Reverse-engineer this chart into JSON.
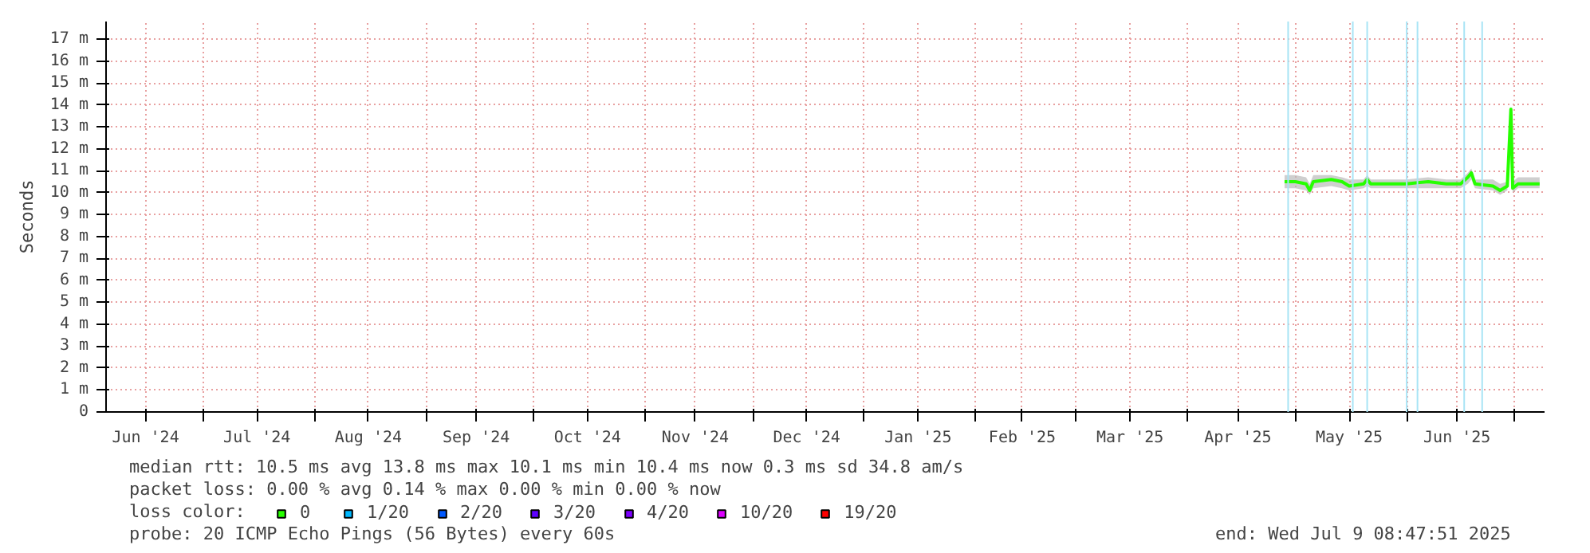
{
  "chart_data": {
    "type": "line",
    "ylabel": "Seconds",
    "legend_title": "loss color:",
    "legend": "bottom",
    "grid": true,
    "line_style": "solid",
    "marker": "none",
    "xlim": [
      "2024-06-04",
      "2025-07-09T08:47"
    ],
    "xticks": [
      {
        "value": "2024-06-15",
        "label": "Jun '24"
      },
      {
        "value": "2024-07-01",
        "label": null
      },
      {
        "value": "2024-07-16",
        "label": "Jul '24"
      },
      {
        "value": "2024-08-01",
        "label": null
      },
      {
        "value": "2024-08-16",
        "label": "Aug '24"
      },
      {
        "value": "2024-09-01",
        "label": null
      },
      {
        "value": "2024-09-15",
        "label": "Sep '24"
      },
      {
        "value": "2024-10-01",
        "label": null
      },
      {
        "value": "2024-10-16",
        "label": "Oct '24"
      },
      {
        "value": "2024-11-01",
        "label": null
      },
      {
        "value": "2024-11-15",
        "label": "Nov '24"
      },
      {
        "value": "2024-12-01",
        "label": null
      },
      {
        "value": "2024-12-16",
        "label": "Dec '24"
      },
      {
        "value": "2025-01-01",
        "label": null
      },
      {
        "value": "2025-01-16",
        "label": "Jan '25"
      },
      {
        "value": "2025-02-01",
        "label": null
      },
      {
        "value": "2025-02-14",
        "label": "Feb '25"
      },
      {
        "value": "2025-03-01",
        "label": null
      },
      {
        "value": "2025-03-16",
        "label": "Mar '25"
      },
      {
        "value": "2025-04-01",
        "label": null
      },
      {
        "value": "2025-04-15",
        "label": "Apr '25"
      },
      {
        "value": "2025-05-01",
        "label": null
      },
      {
        "value": "2025-05-16",
        "label": "May '25"
      },
      {
        "value": "2025-06-01",
        "label": null
      },
      {
        "value": "2025-06-15",
        "label": "Jun '25"
      },
      {
        "value": "2025-07-01",
        "label": null
      }
    ],
    "ylim": [
      0,
      17.8
    ],
    "yticks": [
      0,
      {
        "value": 1,
        "label": "1 m"
      },
      {
        "value": 2,
        "label": "2 m"
      },
      {
        "value": 3,
        "label": "3 m"
      },
      {
        "value": 4,
        "label": "4 m"
      },
      {
        "value": 5,
        "label": "5 m"
      },
      {
        "value": 6,
        "label": "6 m"
      },
      {
        "value": 7,
        "label": "7 m"
      },
      {
        "value": 8,
        "label": "8 m"
      },
      {
        "value": 9,
        "label": "9 m"
      },
      {
        "value": 10,
        "label": "10 m"
      },
      {
        "value": 11,
        "label": "11 m"
      },
      {
        "value": 12,
        "label": "12 m"
      },
      {
        "value": 13,
        "label": "13 m"
      },
      {
        "value": 14,
        "label": "14 m"
      },
      {
        "value": 15,
        "label": "15 m"
      },
      {
        "value": 16,
        "label": "16 m"
      },
      {
        "value": 17,
        "label": "17 m"
      }
    ],
    "x": [
      "2025-04-28",
      "2025-05-01",
      "2025-05-04",
      "2025-05-05",
      "2025-05-06",
      "2025-05-11",
      "2025-05-14",
      "2025-05-16",
      "2025-05-20",
      "2025-05-21",
      "2025-05-22",
      "2025-05-27",
      "2025-06-01",
      "2025-06-07",
      "2025-06-12",
      "2025-06-16",
      "2025-06-18",
      "2025-06-19",
      "2025-06-20",
      "2025-06-25",
      "2025-06-27",
      "2025-06-29",
      "2025-06-30",
      "2025-06-30T12:00",
      "2025-07-02",
      "2025-07-08"
    ],
    "series": [
      {
        "name": "0",
        "color": "#26ff00",
        "values": [
          10.5,
          10.5,
          10.4,
          10.1,
          10.5,
          10.6,
          10.5,
          10.3,
          10.4,
          10.6,
          10.4,
          10.4,
          10.4,
          10.5,
          10.4,
          10.4,
          10.7,
          10.9,
          10.4,
          10.3,
          10.1,
          10.3,
          13.8,
          10.2,
          10.4,
          10.4
        ],
        "lower": [
          10.2,
          10.2,
          10.1,
          9.9,
          10.2,
          10.3,
          10.2,
          10.1,
          10.2,
          10.3,
          10.2,
          10.2,
          10.2,
          10.2,
          10.2,
          10.2,
          10.4,
          10.6,
          10.2,
          10.1,
          9.9,
          10.1,
          12.0,
          10.0,
          10.2,
          10.2
        ],
        "upper": [
          10.8,
          10.8,
          10.7,
          10.4,
          10.8,
          10.8,
          10.7,
          10.6,
          10.6,
          10.8,
          10.6,
          10.6,
          10.6,
          10.7,
          10.6,
          10.6,
          10.9,
          11.1,
          10.6,
          10.6,
          10.4,
          10.5,
          13.8,
          10.5,
          10.7,
          10.7
        ]
      },
      {
        "name": "1/20",
        "color": "#00b8ff",
        "values": [
          null,
          null,
          null,
          null,
          null,
          null,
          null,
          null,
          null,
          null,
          null,
          null,
          null,
          null,
          null,
          null,
          null,
          null,
          null,
          null,
          null,
          null,
          null,
          null,
          null,
          null
        ]
      },
      {
        "name": "2/20",
        "color": "#0059ff",
        "values": [
          null,
          null,
          null,
          null,
          null,
          null,
          null,
          null,
          null,
          null,
          null,
          null,
          null,
          null,
          null,
          null,
          null,
          null,
          null,
          null,
          null,
          null,
          null,
          null,
          null,
          null
        ]
      },
      {
        "name": "3/20",
        "color": "#5e00ff",
        "values": [
          null,
          null,
          null,
          null,
          null,
          null,
          null,
          null,
          null,
          null,
          null,
          null,
          null,
          null,
          null,
          null,
          null,
          null,
          null,
          null,
          null,
          null,
          null,
          null,
          null,
          null
        ]
      },
      {
        "name": "4/20",
        "color": "#7e00ff",
        "values": [
          null,
          null,
          null,
          null,
          null,
          null,
          null,
          null,
          null,
          null,
          null,
          null,
          null,
          null,
          null,
          null,
          null,
          null,
          null,
          null,
          null,
          null,
          null,
          null,
          null,
          null
        ]
      },
      {
        "name": "10/20",
        "color": "#dd00ff",
        "values": [
          null,
          null,
          null,
          null,
          null,
          null,
          null,
          null,
          null,
          null,
          null,
          null,
          null,
          null,
          null,
          null,
          null,
          null,
          null,
          null,
          null,
          null,
          null,
          null,
          null,
          null
        ]
      },
      {
        "name": "19/20",
        "color": "#ff0000",
        "values": [
          null,
          null,
          null,
          null,
          null,
          null,
          null,
          null,
          null,
          null,
          null,
          null,
          null,
          null,
          null,
          null,
          null,
          null,
          null,
          null,
          null,
          null,
          null,
          null,
          null,
          null
        ]
      }
    ],
    "ref_lines": [
      {
        "axis": "x",
        "value": "2025-04-29",
        "color": "#a8e4f5"
      },
      {
        "axis": "x",
        "value": "2025-05-17",
        "color": "#a8e4f5"
      },
      {
        "axis": "x",
        "value": "2025-05-21",
        "color": "#a8e4f5"
      },
      {
        "axis": "x",
        "value": "2025-06-01",
        "color": "#a8e4f5"
      },
      {
        "axis": "x",
        "value": "2025-06-04",
        "color": "#a8e4f5"
      },
      {
        "axis": "x",
        "value": "2025-06-17",
        "color": "#a8e4f5"
      },
      {
        "axis": "x",
        "value": "2025-06-22",
        "color": "#a8e4f5"
      }
    ],
    "annotations": [
      "median rtt:  10.5 ms avg  13.8 ms max  10.1 ms min  10.4 ms now  0.3 ms sd  34.8   am/s",
      "packet loss: 0.00 % avg  0.14 % max  0.00 % min  0.00 % now",
      "probe:       20 ICMP Echo Pings (56 Bytes) every 60s",
      "end: Wed Jul  9 08:47:51 2025"
    ]
  }
}
